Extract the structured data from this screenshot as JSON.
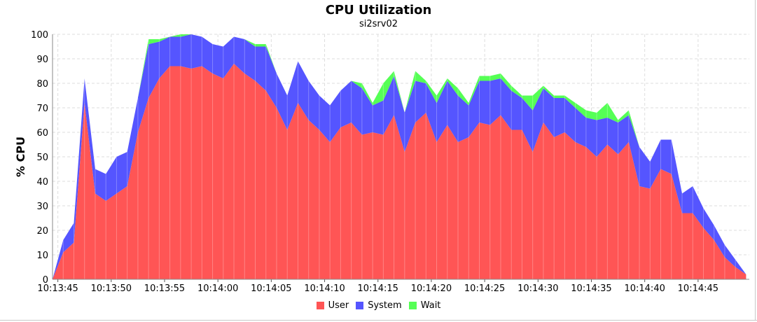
{
  "chart_data": {
    "type": "area",
    "title": "CPU Utilization",
    "subtitle": "si2srv02",
    "ylabel": "% CPU",
    "xlabel": "",
    "ylim": [
      0,
      100
    ],
    "yticks": [
      0,
      10,
      20,
      30,
      40,
      50,
      60,
      70,
      80,
      90,
      100
    ],
    "xticks": [
      "10:13:45",
      "10:13:50",
      "10:13:55",
      "10:14:00",
      "10:14:05",
      "10:14:10",
      "10:14:15",
      "10:14:20",
      "10:14:25",
      "10:14:30",
      "10:14:35",
      "10:14:40",
      "10:14:45"
    ],
    "x_start": "10:13:44.5",
    "x_end": "10:14:49.8",
    "interval_seconds": 1,
    "stacked": true,
    "grid": true,
    "legend_position": "bottom",
    "series": [
      {
        "name": "User",
        "color": "#ff5555",
        "values": [
          0,
          11,
          15,
          72,
          35,
          32,
          35,
          38,
          60,
          74,
          82,
          87,
          87,
          86,
          87,
          84,
          82,
          88,
          84,
          81,
          77,
          70,
          61,
          72,
          65,
          61,
          56,
          62,
          64,
          59,
          60,
          59,
          67,
          52,
          64,
          68,
          56,
          63,
          56,
          58,
          64,
          63,
          67,
          61,
          61,
          52,
          64,
          58,
          60,
          56,
          54,
          50,
          55,
          51,
          56,
          38,
          37,
          45,
          43,
          27,
          27,
          21,
          16,
          9,
          5,
          2
        ]
      },
      {
        "name": "System",
        "color": "#5555ff",
        "values": [
          0,
          5,
          8,
          10,
          10,
          11,
          15,
          14,
          14,
          22,
          15,
          12,
          12,
          14,
          12,
          12,
          13,
          11,
          14,
          14,
          18,
          14,
          14,
          17,
          16,
          14,
          15,
          15,
          17,
          19,
          11,
          14,
          16,
          16,
          17,
          12,
          16,
          18,
          19,
          13,
          17,
          18,
          15,
          16,
          13,
          17,
          14,
          16,
          14,
          14,
          12,
          15,
          11,
          13,
          11,
          16,
          11,
          12,
          14,
          8,
          11,
          8,
          6,
          5,
          3,
          0
        ]
      },
      {
        "name": "Wait",
        "color": "#55ff55",
        "values": [
          0,
          0,
          0,
          0,
          0,
          0,
          0,
          0,
          0,
          2,
          1,
          0,
          1,
          0,
          0,
          0,
          0,
          0,
          0,
          1,
          1,
          0,
          0,
          0,
          0,
          0,
          0,
          0,
          0,
          2,
          1,
          7,
          2,
          0,
          4,
          1,
          3,
          1,
          3,
          1,
          2,
          2,
          2,
          2,
          1,
          6,
          1,
          1,
          1,
          2,
          3,
          3,
          6,
          1,
          2,
          0,
          0,
          0,
          0,
          0,
          0,
          0,
          0,
          0,
          0,
          0
        ]
      }
    ]
  }
}
